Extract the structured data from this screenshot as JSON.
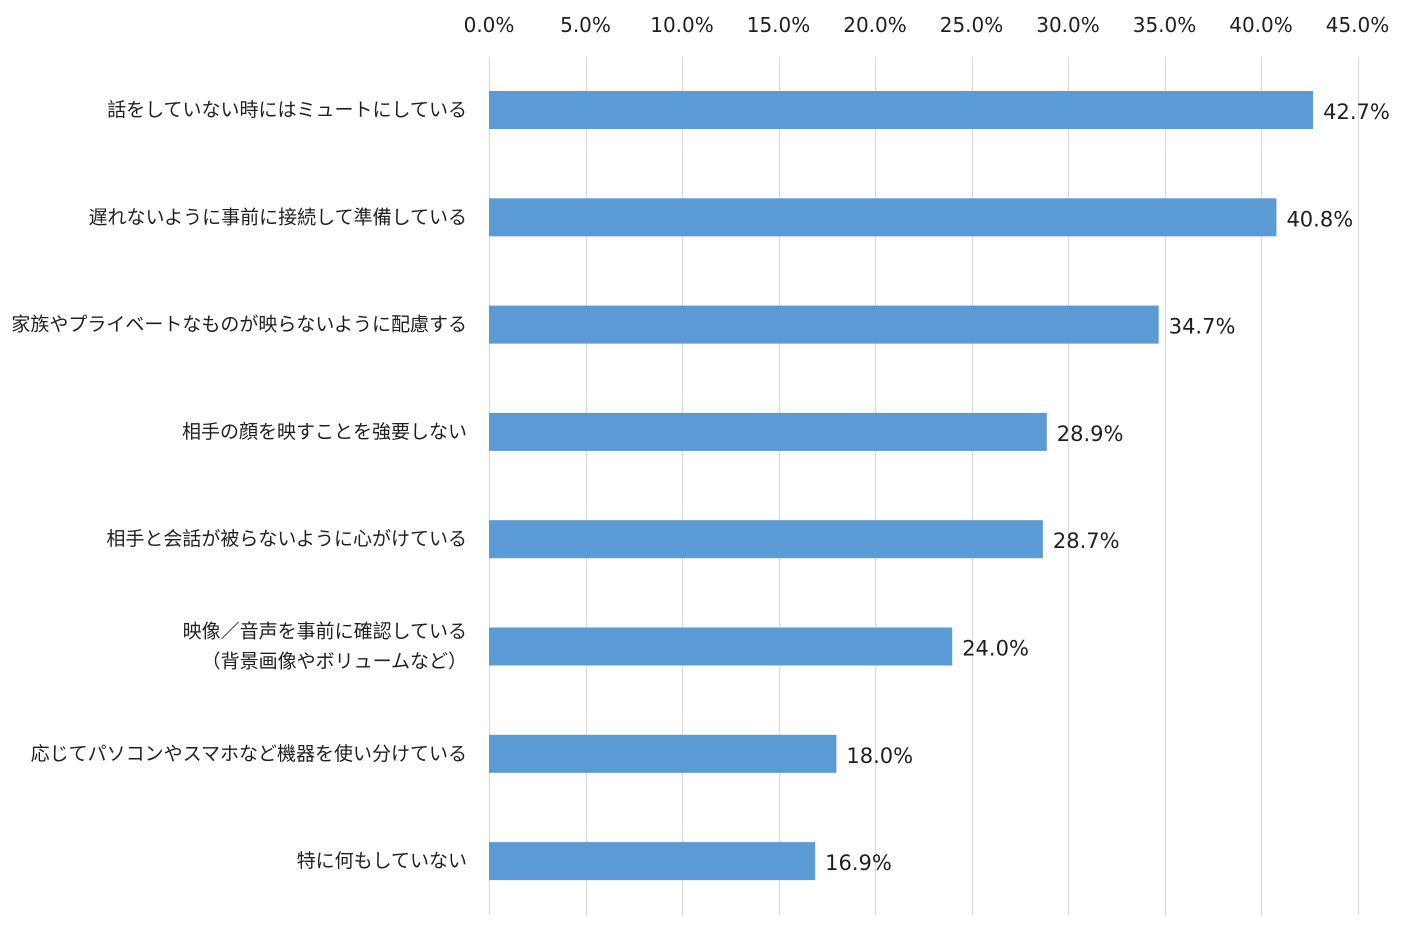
{
  "chart_data": {
    "type": "bar",
    "orientation": "horizontal",
    "categories": [
      [
        "話をしていない時にはミュートにしている"
      ],
      [
        "遅れないように事前に接続して準備している"
      ],
      [
        "家族やプライベートなものが映らないように配慮する"
      ],
      [
        "相手の顔を映すことを強要しない"
      ],
      [
        "相手と会話が被らないように心がけている"
      ],
      [
        "映像／音声を事前に確認している",
        "（背景画像やボリュームなど）"
      ],
      [
        "応じてパソコンやスマホなど機器を使い分けている"
      ],
      [
        "特に何もしていない"
      ]
    ],
    "values": [
      42.7,
      40.8,
      34.7,
      28.9,
      28.7,
      24.0,
      18.0,
      16.9
    ],
    "data_labels": [
      "42.7%",
      "40.8%",
      "34.7%",
      "28.9%",
      "28.7%",
      "24.0%",
      "18.0%",
      "16.9%"
    ],
    "xlim": [
      0,
      45
    ],
    "x_ticks": [
      0,
      5,
      10,
      15,
      20,
      25,
      30,
      35,
      40,
      45
    ],
    "x_tick_labels": [
      "0.0%",
      "5.0%",
      "10.0%",
      "15.0%",
      "20.0%",
      "25.0%",
      "30.0%",
      "35.0%",
      "40.0%",
      "45.0%"
    ],
    "x_axis_position": "top",
    "grid": true,
    "bar_color": "#5b9bd5",
    "grid_color": "#d9d9d9",
    "title": "",
    "xlabel": "",
    "ylabel": ""
  }
}
